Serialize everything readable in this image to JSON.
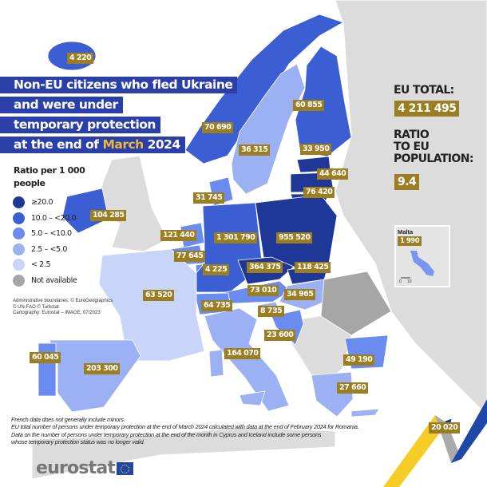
{
  "title": {
    "line1": "Non-EU citizens who fled Ukraine",
    "line2": "and were under",
    "line3": "temporary protection",
    "line4_pre": "at the end of ",
    "line4_highlight": "March",
    "line4_post": " 2024"
  },
  "legend": {
    "title": "Ratio per 1 000 people",
    "items": [
      {
        "label": "≥20.0",
        "color": "#1f3797"
      },
      {
        "label": "10.0 – <20.0",
        "color": "#3b5fd3"
      },
      {
        "label": "5.0 – <10.0",
        "color": "#6a8cf0"
      },
      {
        "label": "2.5 – <5.0",
        "color": "#9bb1f3"
      },
      {
        "label": "< 2.5",
        "color": "#c9d5f8"
      },
      {
        "label": "Not available",
        "color": "#a6a6a6"
      }
    ]
  },
  "credits": {
    "line1": "Administrative boundaries: © EuroGeographics",
    "line2": "© UN-FAO © Turkstat",
    "line3": "Cartography: Eurostat – IMAGE, 07/2023"
  },
  "eu_total": {
    "label": "EU TOTAL:",
    "value": "4 211 495"
  },
  "ratio": {
    "label1": "RATIO",
    "label2": "TO EU",
    "label3": "POPULATION:",
    "value": "9.4"
  },
  "malta": {
    "name": "Malta",
    "value": "1 990",
    "scale_0": "0",
    "scale_10": "10"
  },
  "labels": {
    "IS": {
      "value": "4 220",
      "class": 1
    },
    "NO": {
      "value": "70 690",
      "class": 1
    },
    "SE": {
      "value": "36 315",
      "class": 3
    },
    "FI": {
      "value": "60 855",
      "class": 1
    },
    "EE": {
      "value": "33 950",
      "class": 0
    },
    "LV": {
      "value": "44 640",
      "class": 0
    },
    "LT": {
      "value": "76 420",
      "class": 0
    },
    "DK": {
      "value": "31 745",
      "class": 2
    },
    "IE": {
      "value": "104 285",
      "class": 1
    },
    "NL": {
      "value": "121 440",
      "class": 2
    },
    "BE": {
      "value": "77 645",
      "class": 2
    },
    "LU": {
      "value": "4 225",
      "class": 2
    },
    "DE": {
      "value": "1 301 790",
      "class": 1
    },
    "PL": {
      "value": "955 520",
      "class": 0
    },
    "CZ": {
      "value": "364 375",
      "class": 0
    },
    "SK": {
      "value": "118 425",
      "class": 0
    },
    "AT": {
      "value": "73 010",
      "class": 2
    },
    "HU": {
      "value": "34 965",
      "class": 3
    },
    "SI": {
      "value": "8 735",
      "class": 3
    },
    "HR": {
      "value": "23 600",
      "class": 2
    },
    "CH": {
      "value": "64 735",
      "class": 2
    },
    "FR": {
      "value": "63 520",
      "class": 4
    },
    "IT": {
      "value": "164 070",
      "class": 3
    },
    "ES": {
      "value": "203 300",
      "class": 3
    },
    "PT": {
      "value": "60 045",
      "class": 2
    },
    "BG": {
      "value": "49 190",
      "class": 2
    },
    "EL": {
      "value": "27 660",
      "class": 3
    },
    "CY": {
      "value": "20 020",
      "class": 0
    },
    "RO": {
      "class": 5
    }
  },
  "footnotes": {
    "line1": "French data does not generally include minors.",
    "line2": "EU total number of persons under temporary protection at the end of March 2024 calculated with data at the end of February 2024 for Romania.",
    "line3": "Data on the number of persons under temporary protection at the end of the month in Cyprus and Iceland include some persons",
    "line4": "whose temporary protection status was no longer valid."
  },
  "logo": {
    "text": "eurostat"
  },
  "colors": {
    "label_bg": "#9c7e22",
    "title_bg": "#2a3fa8",
    "highlight": "#e8b83a",
    "non_eu_land": "#dcdcdc",
    "sea": "#ffffff"
  }
}
